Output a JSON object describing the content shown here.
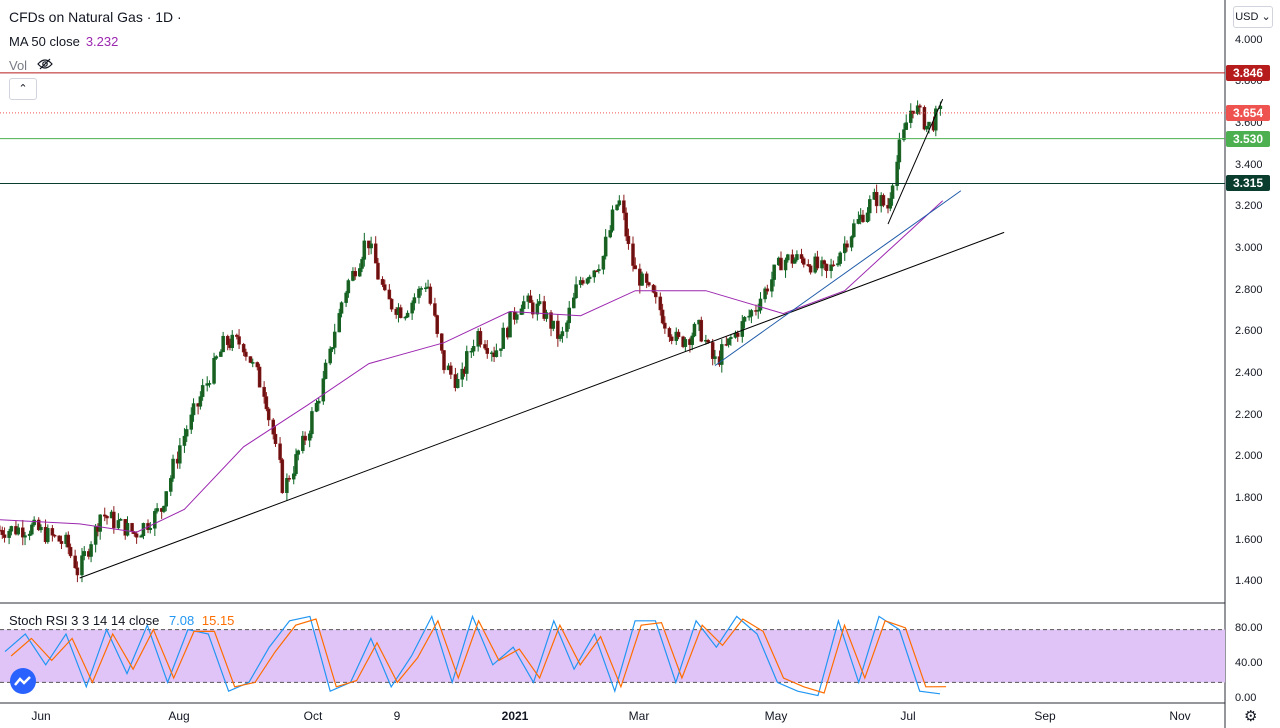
{
  "header": {
    "title": "CFDs on Natural Gas · 1D ·",
    "ma_label": "MA 50 close",
    "ma_value": "3.232",
    "vol_label": "Vol",
    "currency": "USD",
    "ma_color": "#9c27b0"
  },
  "price_tags": [
    {
      "label": "3.846",
      "color": "#b71c1c",
      "value": 3.846
    },
    {
      "label": "3.654",
      "color": "#ef5350",
      "value": 3.654
    },
    {
      "label": "3.530",
      "color": "#4caf50",
      "value": 3.53
    },
    {
      "label": "3.315",
      "color": "#0b3d2e",
      "value": 3.315
    }
  ],
  "oscillator": {
    "label": "Stoch RSI 3 3 14 14 close",
    "k_value": "7.08",
    "d_value": "15.15",
    "k_color": "#2196f3",
    "d_color": "#ff6d00",
    "band_fill": "#e1c4f7",
    "ticks": [
      "80.00",
      "40.00",
      "0.00"
    ],
    "band": [
      20,
      80
    ]
  },
  "chart_data": {
    "type": "candlestick",
    "y_ticks": [
      "4.000",
      "3.800",
      "3.600",
      "3.400",
      "3.200",
      "3.000",
      "2.800",
      "2.600",
      "2.400",
      "2.200",
      "2.000",
      "1.800",
      "1.600",
      "1.400"
    ],
    "ylim": [
      1.3,
      4.1
    ],
    "x_ticks": [
      "Jun",
      "Aug",
      "Oct",
      "9",
      "2021",
      "Mar",
      "May",
      "Jul",
      "Sep",
      "Nov"
    ],
    "x_range": [
      "2020-05-26",
      "2021-11-15"
    ],
    "close_series": [
      [
        "2020-05-26",
        1.65
      ],
      [
        "2020-06-10",
        1.66
      ],
      [
        "2020-06-25",
        1.58
      ],
      [
        "2020-06-30",
        1.45
      ],
      [
        "2020-07-10",
        1.73
      ],
      [
        "2020-07-25",
        1.63
      ],
      [
        "2020-08-05",
        1.75
      ],
      [
        "2020-08-15",
        2.1
      ],
      [
        "2020-08-25",
        2.35
      ],
      [
        "2020-09-02",
        2.55
      ],
      [
        "2020-09-10",
        2.55
      ],
      [
        "2020-09-20",
        2.3
      ],
      [
        "2020-09-28",
        1.85
      ],
      [
        "2020-10-08",
        2.1
      ],
      [
        "2020-10-15",
        2.35
      ],
      [
        "2020-10-25",
        2.8
      ],
      [
        "2020-11-04",
        3.05
      ],
      [
        "2020-11-12",
        2.75
      ],
      [
        "2020-11-20",
        2.7
      ],
      [
        "2020-11-30",
        2.85
      ],
      [
        "2020-12-07",
        2.45
      ],
      [
        "2020-12-14",
        2.35
      ],
      [
        "2020-12-22",
        2.6
      ],
      [
        "2020-12-30",
        2.5
      ],
      [
        "2021-01-10",
        2.75
      ],
      [
        "2021-01-20",
        2.7
      ],
      [
        "2021-01-28",
        2.55
      ],
      [
        "2021-02-05",
        2.85
      ],
      [
        "2021-02-15",
        2.95
      ],
      [
        "2021-02-22",
        3.25
      ],
      [
        "2021-03-01",
        2.9
      ],
      [
        "2021-03-10",
        2.75
      ],
      [
        "2021-03-20",
        2.55
      ],
      [
        "2021-03-30",
        2.62
      ],
      [
        "2021-04-05",
        2.45
      ],
      [
        "2021-04-15",
        2.6
      ],
      [
        "2021-04-25",
        2.75
      ],
      [
        "2021-05-05",
        2.95
      ],
      [
        "2021-05-15",
        2.95
      ],
      [
        "2021-05-25",
        2.88
      ],
      [
        "2021-06-05",
        3.1
      ],
      [
        "2021-06-15",
        3.25
      ],
      [
        "2021-06-20",
        3.2
      ],
      [
        "2021-06-25",
        3.45
      ],
      [
        "2021-07-01",
        3.7
      ],
      [
        "2021-07-08",
        3.58
      ],
      [
        "2021-07-14",
        3.66
      ]
    ],
    "ma50_series": [
      [
        "2020-05-26",
        1.7
      ],
      [
        "2020-06-30",
        1.68
      ],
      [
        "2020-07-25",
        1.64
      ],
      [
        "2020-08-15",
        1.75
      ],
      [
        "2020-09-10",
        2.05
      ],
      [
        "2020-10-08",
        2.25
      ],
      [
        "2020-11-04",
        2.45
      ],
      [
        "2020-12-07",
        2.55
      ],
      [
        "2021-01-05",
        2.7
      ],
      [
        "2021-02-05",
        2.68
      ],
      [
        "2021-03-01",
        2.8
      ],
      [
        "2021-04-01",
        2.8
      ],
      [
        "2021-05-05",
        2.69
      ],
      [
        "2021-06-01",
        2.8
      ],
      [
        "2021-07-14",
        3.232
      ]
    ],
    "stoch_k": [
      55,
      75,
      40,
      75,
      15,
      80,
      30,
      85,
      20,
      80,
      75,
      10,
      20,
      60,
      90,
      95,
      10,
      20,
      70,
      15,
      50,
      95,
      20,
      95,
      40,
      60,
      20,
      90,
      35,
      75,
      10,
      90,
      90,
      20,
      90,
      60,
      95,
      75,
      20,
      10,
      5,
      90,
      20,
      95,
      80,
      10,
      7.08
    ],
    "stoch_d": [
      50,
      70,
      45,
      70,
      20,
      75,
      35,
      80,
      25,
      78,
      78,
      15,
      20,
      55,
      85,
      92,
      15,
      22,
      65,
      20,
      48,
      90,
      25,
      90,
      45,
      58,
      25,
      85,
      40,
      72,
      15,
      85,
      88,
      25,
      85,
      62,
      92,
      78,
      25,
      15,
      8,
      85,
      25,
      90,
      82,
      15,
      15.15
    ]
  }
}
